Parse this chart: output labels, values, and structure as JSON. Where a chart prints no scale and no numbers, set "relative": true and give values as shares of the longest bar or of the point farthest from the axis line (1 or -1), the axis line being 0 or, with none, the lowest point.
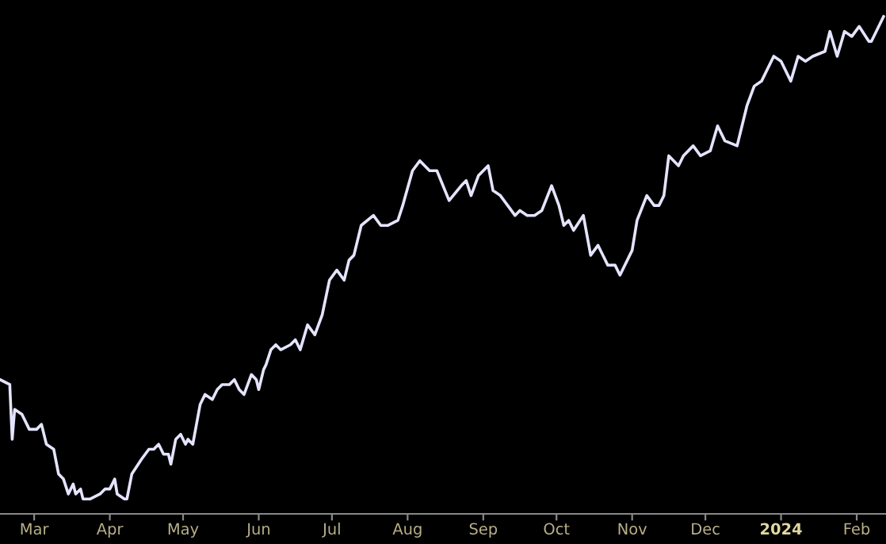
{
  "chart_data": {
    "type": "line",
    "relative": true,
    "grid": false,
    "legend": false,
    "marker": "none",
    "line_style": "solid",
    "xlim": [
      "2023-02-15",
      "2024-02-13"
    ],
    "xticks": [
      {
        "value": "2023-03-01",
        "label": "Mar"
      },
      {
        "value": "2023-04-01",
        "label": "Apr"
      },
      {
        "value": "2023-05-01",
        "label": "May"
      },
      {
        "value": "2023-06-01",
        "label": "Jun"
      },
      {
        "value": "2023-07-01",
        "label": "Jul"
      },
      {
        "value": "2023-08-01",
        "label": "Aug"
      },
      {
        "value": "2023-09-01",
        "label": "Sep"
      },
      {
        "value": "2023-10-01",
        "label": "Oct"
      },
      {
        "value": "2023-11-01",
        "label": "Nov"
      },
      {
        "value": "2023-12-01",
        "label": "Dec"
      },
      {
        "value": "2024-01-01",
        "label": "2024"
      },
      {
        "value": "2024-02-01",
        "label": "Feb"
      }
    ],
    "x": [
      "2023-02-15",
      "2023-02-19",
      "2023-02-20",
      "2023-02-21",
      "2023-02-24",
      "2023-02-27",
      "2023-03-02",
      "2023-03-04",
      "2023-03-06",
      "2023-03-09",
      "2023-03-11",
      "2023-03-13",
      "2023-03-15",
      "2023-03-17",
      "2023-03-18",
      "2023-03-20",
      "2023-03-21",
      "2023-03-24",
      "2023-03-28",
      "2023-03-30",
      "2023-04-01",
      "2023-04-03",
      "2023-04-04",
      "2023-04-07",
      "2023-04-08",
      "2023-04-10",
      "2023-04-14",
      "2023-04-17",
      "2023-04-19",
      "2023-04-21",
      "2023-04-23",
      "2023-04-25",
      "2023-04-26",
      "2023-04-28",
      "2023-04-30",
      "2023-05-02",
      "2023-05-03",
      "2023-05-05",
      "2023-05-08",
      "2023-05-10",
      "2023-05-13",
      "2023-05-15",
      "2023-05-17",
      "2023-05-20",
      "2023-05-22",
      "2023-05-24",
      "2023-05-26",
      "2023-05-29",
      "2023-05-31",
      "2023-06-01",
      "2023-06-03",
      "2023-06-04",
      "2023-06-06",
      "2023-06-08",
      "2023-06-10",
      "2023-06-14",
      "2023-06-16",
      "2023-06-18",
      "2023-06-21",
      "2023-06-24",
      "2023-06-27",
      "2023-06-30",
      "2023-07-03",
      "2023-07-06",
      "2023-07-08",
      "2023-07-10",
      "2023-07-13",
      "2023-07-18",
      "2023-07-21",
      "2023-07-24",
      "2023-07-28",
      "2023-07-30",
      "2023-08-03",
      "2023-08-06",
      "2023-08-10",
      "2023-08-13",
      "2023-08-18",
      "2023-08-23",
      "2023-08-25",
      "2023-08-27",
      "2023-08-30",
      "2023-09-03",
      "2023-09-05",
      "2023-09-08",
      "2023-09-11",
      "2023-09-14",
      "2023-09-16",
      "2023-09-19",
      "2023-09-22",
      "2023-09-25",
      "2023-09-29",
      "2023-10-02",
      "2023-10-04",
      "2023-10-06",
      "2023-10-08",
      "2023-10-12",
      "2023-10-15",
      "2023-10-18",
      "2023-10-22",
      "2023-10-25",
      "2023-10-27",
      "2023-11-01",
      "2023-11-03",
      "2023-11-07",
      "2023-11-10",
      "2023-11-12",
      "2023-11-14",
      "2023-11-16",
      "2023-11-20",
      "2023-11-22",
      "2023-11-26",
      "2023-11-29",
      "2023-12-03",
      "2023-12-06",
      "2023-12-09",
      "2023-12-14",
      "2023-12-18",
      "2023-12-21",
      "2023-12-24",
      "2023-12-29",
      "2024-01-01",
      "2024-01-05",
      "2024-01-08",
      "2024-01-11",
      "2024-01-14",
      "2024-01-19",
      "2024-01-21",
      "2024-01-24",
      "2024-01-27",
      "2024-01-30",
      "2024-02-02",
      "2024-02-06",
      "2024-02-07",
      "2024-02-12"
    ],
    "series": [
      {
        "color": "#e4e4ff",
        "values": [
          0.27,
          0.26,
          0.15,
          0.21,
          0.2,
          0.17,
          0.17,
          0.18,
          0.14,
          0.13,
          0.08,
          0.07,
          0.04,
          0.06,
          0.04,
          0.05,
          0.03,
          0.03,
          0.04,
          0.05,
          0.05,
          0.07,
          0.04,
          0.03,
          0.03,
          0.08,
          0.11,
          0.13,
          0.13,
          0.14,
          0.12,
          0.12,
          0.1,
          0.15,
          0.16,
          0.14,
          0.15,
          0.14,
          0.22,
          0.24,
          0.23,
          0.25,
          0.26,
          0.26,
          0.27,
          0.25,
          0.24,
          0.28,
          0.27,
          0.25,
          0.29,
          0.3,
          0.33,
          0.34,
          0.33,
          0.34,
          0.35,
          0.33,
          0.38,
          0.36,
          0.4,
          0.47,
          0.49,
          0.47,
          0.51,
          0.52,
          0.58,
          0.6,
          0.58,
          0.58,
          0.59,
          0.62,
          0.69,
          0.71,
          0.69,
          0.69,
          0.63,
          0.66,
          0.67,
          0.64,
          0.68,
          0.7,
          0.65,
          0.64,
          0.62,
          0.6,
          0.61,
          0.6,
          0.6,
          0.61,
          0.66,
          0.62,
          0.58,
          0.59,
          0.57,
          0.6,
          0.52,
          0.54,
          0.5,
          0.5,
          0.48,
          0.53,
          0.59,
          0.64,
          0.62,
          0.62,
          0.64,
          0.72,
          0.7,
          0.72,
          0.74,
          0.72,
          0.73,
          0.78,
          0.75,
          0.74,
          0.82,
          0.86,
          0.87,
          0.92,
          0.91,
          0.87,
          0.92,
          0.91,
          0.92,
          0.93,
          0.97,
          0.92,
          0.97,
          0.96,
          0.98,
          0.95,
          0.95,
          1
        ]
      }
    ]
  }
}
